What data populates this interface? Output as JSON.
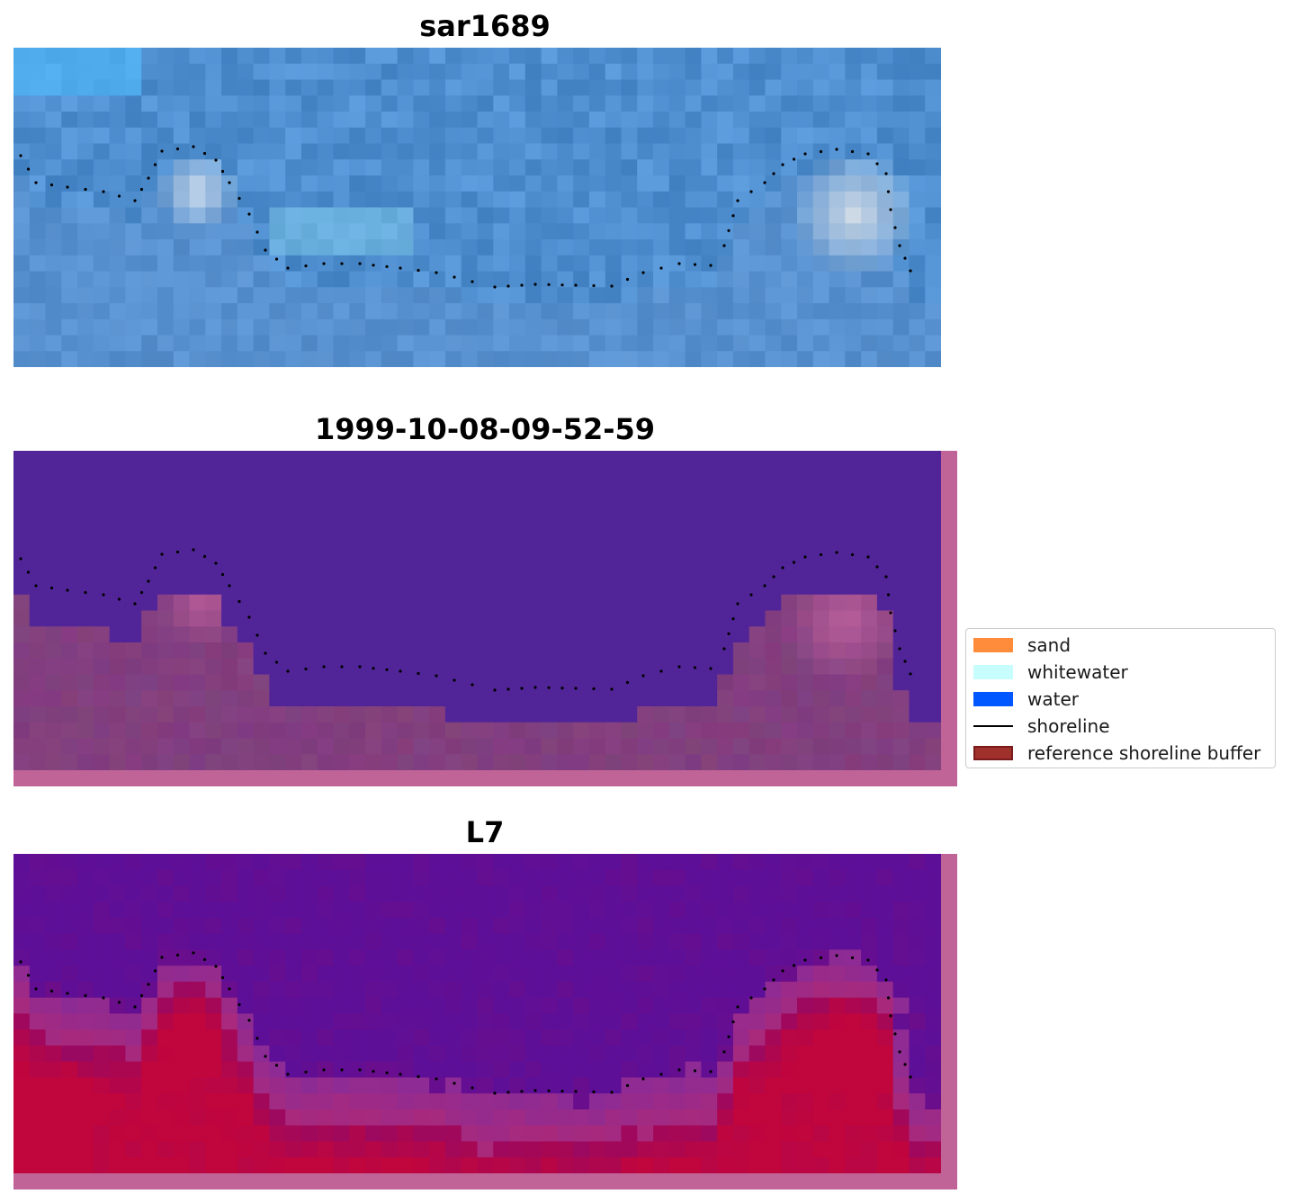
{
  "panels": [
    {
      "title": "sar1689",
      "kind": "rgb"
    },
    {
      "title": "1999-10-08-09-52-59",
      "kind": "classified"
    },
    {
      "title": "L7",
      "kind": "index"
    }
  ],
  "legend": {
    "placement": "center-right",
    "items": [
      {
        "label": "sand",
        "color": "#ff8c3a",
        "type": "patch"
      },
      {
        "label": "whitewater",
        "color": "#c8fdfd",
        "type": "patch"
      },
      {
        "label": "water",
        "color": "#0057ff",
        "type": "patch"
      },
      {
        "label": "shoreline",
        "color": "#000000",
        "type": "line"
      },
      {
        "label": "reference shoreline buffer",
        "color": "#a0302c",
        "type": "patch"
      }
    ]
  },
  "colors": {
    "rgb_sky": "#4f8fd0",
    "classified_water": "#512598",
    "classified_land": "#823f7e",
    "buffer_overlay": "#c06497",
    "index_low": "#5d0f98",
    "index_high": "#c1053d"
  }
}
